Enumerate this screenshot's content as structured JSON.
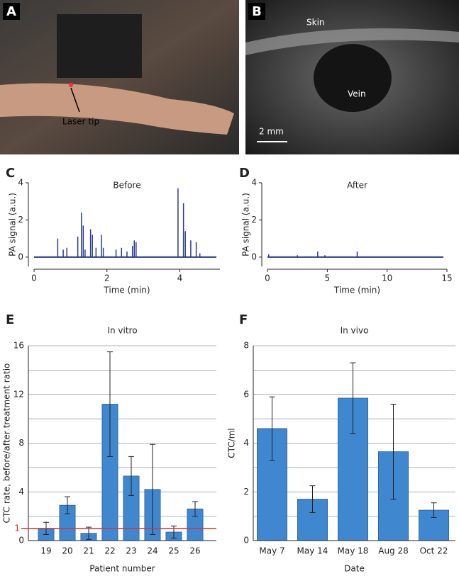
{
  "images": [
    {
      "letter": "A",
      "annotations": [
        "Laser tip"
      ]
    },
    {
      "letter": "B",
      "annotations": [
        "Skin",
        "Vein",
        "2 mm"
      ]
    }
  ],
  "chart_data": [
    {
      "type": "stem",
      "panel": "C",
      "title": "Before",
      "xlabel": "Time (min)",
      "ylabel": "PA signal (a.u.)",
      "color": "#2b3a8f",
      "baseline": 0,
      "x": [
        0.65,
        0.8,
        0.9,
        1.2,
        1.3,
        1.35,
        1.4,
        1.55,
        1.6,
        1.7,
        1.85,
        1.9,
        2.25,
        2.4,
        2.55,
        2.7,
        2.75,
        2.8,
        3.95,
        4.1,
        4.15,
        4.3,
        4.45,
        4.55
      ],
      "values": [
        1.0,
        0.4,
        0.5,
        1.1,
        2.4,
        1.7,
        0.4,
        1.5,
        1.2,
        0.5,
        1.2,
        0.5,
        0.4,
        0.5,
        0.3,
        0.6,
        0.9,
        0.8,
        3.7,
        2.9,
        1.4,
        0.9,
        0.8,
        0.2
      ],
      "xlim": [
        0,
        5.1
      ],
      "xticks": [
        0,
        2,
        4
      ],
      "ylim": [
        -0.5,
        4
      ],
      "yticks": [
        0,
        2,
        4
      ]
    },
    {
      "type": "stem",
      "panel": "D",
      "title": "After",
      "xlabel": "Time (min)",
      "ylabel": "PA signal (a.u.)",
      "color": "#2b3a8f",
      "baseline": 0,
      "x": [
        0.1,
        2.5,
        4.2,
        4.8,
        7.5
      ],
      "values": [
        0.15,
        0.1,
        0.3,
        0.1,
        0.3
      ],
      "xlim": [
        0,
        15
      ],
      "xticks": [
        0,
        5,
        10,
        15
      ],
      "ylim": [
        -0.5,
        4
      ],
      "yticks": [
        0,
        2,
        4
      ]
    },
    {
      "type": "bar",
      "panel": "E",
      "title": "In vitro",
      "xlabel": "Patient number",
      "ylabel": "CTC rate, before/after treatment ratio",
      "color": "#3f88cf",
      "categories": [
        "19",
        "20",
        "21",
        "22",
        "23",
        "24",
        "25",
        "26"
      ],
      "values": [
        1.0,
        2.9,
        0.6,
        11.2,
        5.3,
        4.2,
        0.7,
        2.6
      ],
      "errors": [
        0.5,
        0.7,
        0.5,
        4.3,
        1.6,
        3.7,
        0.5,
        0.6
      ],
      "ylim": [
        0,
        16
      ],
      "yticks": [
        0,
        4,
        8,
        12,
        16
      ],
      "minor_grid": [
        2,
        6,
        10,
        14
      ],
      "hline": {
        "value": 1,
        "color": "#e0302a"
      }
    },
    {
      "type": "bar",
      "panel": "F",
      "title": "In vivo",
      "xlabel": "Date",
      "ylabel": "CTC/ml",
      "color": "#3f88cf",
      "categories": [
        "May 7",
        "May 14",
        "May 18",
        "Aug 28",
        "Oct 22"
      ],
      "values": [
        4.6,
        1.7,
        5.85,
        3.65,
        1.25
      ],
      "errors": [
        1.3,
        0.55,
        1.45,
        1.95,
        0.3
      ],
      "ylim": [
        0,
        8
      ],
      "yticks": [
        0,
        2,
        4,
        6,
        8
      ],
      "minor_grid": [
        1,
        3,
        5,
        7
      ]
    }
  ]
}
